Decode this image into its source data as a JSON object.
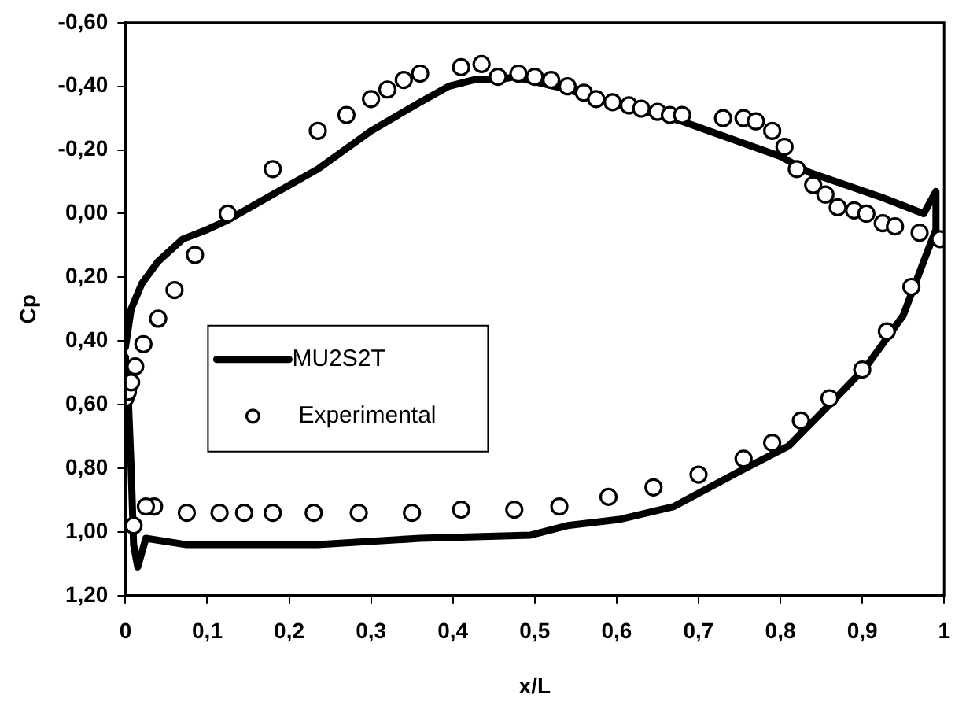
{
  "chart_data": {
    "type": "line",
    "xlabel": "x/L",
    "ylabel": "Cp",
    "xlim": [
      0,
      1
    ],
    "ylim": [
      1.2,
      -0.6
    ],
    "xticks": [
      0,
      {
        "value": 0.1,
        "label": "0,1"
      },
      {
        "value": 0.2,
        "label": "0,2"
      },
      {
        "value": 0.3,
        "label": "0,3"
      },
      {
        "value": 0.4,
        "label": "0,4"
      },
      {
        "value": 0.5,
        "label": "0,5"
      },
      {
        "value": 0.6,
        "label": "0,6"
      },
      {
        "value": 0.7,
        "label": "0,7"
      },
      {
        "value": 0.8,
        "label": "0,8"
      },
      {
        "value": 0.9,
        "label": "0,9"
      },
      1
    ],
    "yticks": [
      {
        "value": -0.6,
        "label": "-0,60"
      },
      {
        "value": -0.4,
        "label": "-0,40"
      },
      {
        "value": -0.2,
        "label": "-0,20"
      },
      {
        "value": 0,
        "label": "0,00"
      },
      {
        "value": 0.2,
        "label": "0,20"
      },
      {
        "value": 0.4,
        "label": "0,40"
      },
      {
        "value": 0.6,
        "label": "0,60"
      },
      {
        "value": 0.8,
        "label": "0,80"
      },
      {
        "value": 1,
        "label": "1,00"
      },
      {
        "value": 1.2,
        "label": "1,20"
      }
    ],
    "grid": false,
    "legend": "left",
    "series": [
      {
        "name": "MU2S2T",
        "type": "line",
        "color": "#000000",
        "marker": "none",
        "line_style": "solid",
        "x": [
          0,
          0.007,
          0.02,
          0.04,
          0.07,
          0.1,
          0.125,
          0.18,
          0.235,
          0.3,
          0.36,
          0.395,
          0.425,
          0.455,
          0.475,
          0.54,
          0.605,
          0.68,
          0.8,
          0.835,
          0.925,
          0.975,
          0.99,
          0.99,
          0.975,
          0.95,
          0.905,
          0.86,
          0.81,
          0.75,
          0.67,
          0.605,
          0.54,
          0.495,
          0.36,
          0.235,
          0.075,
          0.025,
          0.015,
          0.01,
          0.007,
          0.003,
          0
        ],
        "values": [
          0.42,
          0.3,
          0.22,
          0.15,
          0.08,
          0.05,
          0.02,
          -0.06,
          -0.14,
          -0.26,
          -0.35,
          -0.4,
          -0.42,
          -0.42,
          -0.43,
          -0.39,
          -0.34,
          -0.29,
          -0.18,
          -0.13,
          -0.05,
          0,
          -0.07,
          0.05,
          0.15,
          0.32,
          0.48,
          0.6,
          0.73,
          0.81,
          0.92,
          0.96,
          0.98,
          1.01,
          1.02,
          1.04,
          1.04,
          1.02,
          1.11,
          1.04,
          0.8,
          0.55,
          0.45
        ]
      },
      {
        "name": "Experimental",
        "type": "scatter",
        "color": "#000000",
        "marker": "circle",
        "x": [
          0,
          0.003,
          0.007,
          0.012,
          0.022,
          0.04,
          0.06,
          0.085,
          0.125,
          0.18,
          0.235,
          0.27,
          0.3,
          0.32,
          0.34,
          0.36,
          0.41,
          0.435,
          0.455,
          0.48,
          0.5,
          0.52,
          0.54,
          0.56,
          0.575,
          0.595,
          0.615,
          0.63,
          0.65,
          0.665,
          0.68,
          0.73,
          0.755,
          0.77,
          0.79,
          0.805,
          0.82,
          0.84,
          0.855,
          0.87,
          0.89,
          0.905,
          0.925,
          0.94,
          0.97,
          0.995,
          0.96,
          0.93,
          0.9,
          0.86,
          0.825,
          0.79,
          0.755,
          0.7,
          0.645,
          0.59,
          0.53,
          0.475,
          0.41,
          0.35,
          0.285,
          0.23,
          0.18,
          0.145,
          0.115,
          0.075,
          0.035,
          0.025,
          0.01
        ],
        "values": [
          0.58,
          0.56,
          0.53,
          0.48,
          0.41,
          0.33,
          0.24,
          0.13,
          0,
          -0.14,
          -0.26,
          -0.31,
          -0.36,
          -0.39,
          -0.42,
          -0.44,
          -0.46,
          -0.47,
          -0.43,
          -0.44,
          -0.43,
          -0.42,
          -0.4,
          -0.38,
          -0.36,
          -0.35,
          -0.34,
          -0.33,
          -0.32,
          -0.31,
          -0.31,
          -0.3,
          -0.3,
          -0.29,
          -0.26,
          -0.21,
          -0.14,
          -0.09,
          -0.06,
          -0.02,
          -0.01,
          0,
          0.03,
          0.04,
          0.06,
          0.08,
          0.23,
          0.37,
          0.49,
          0.58,
          0.65,
          0.72,
          0.77,
          0.82,
          0.86,
          0.89,
          0.92,
          0.93,
          0.93,
          0.94,
          0.94,
          0.94,
          0.94,
          0.94,
          0.94,
          0.94,
          0.92,
          0.92,
          0.98
        ]
      }
    ]
  }
}
